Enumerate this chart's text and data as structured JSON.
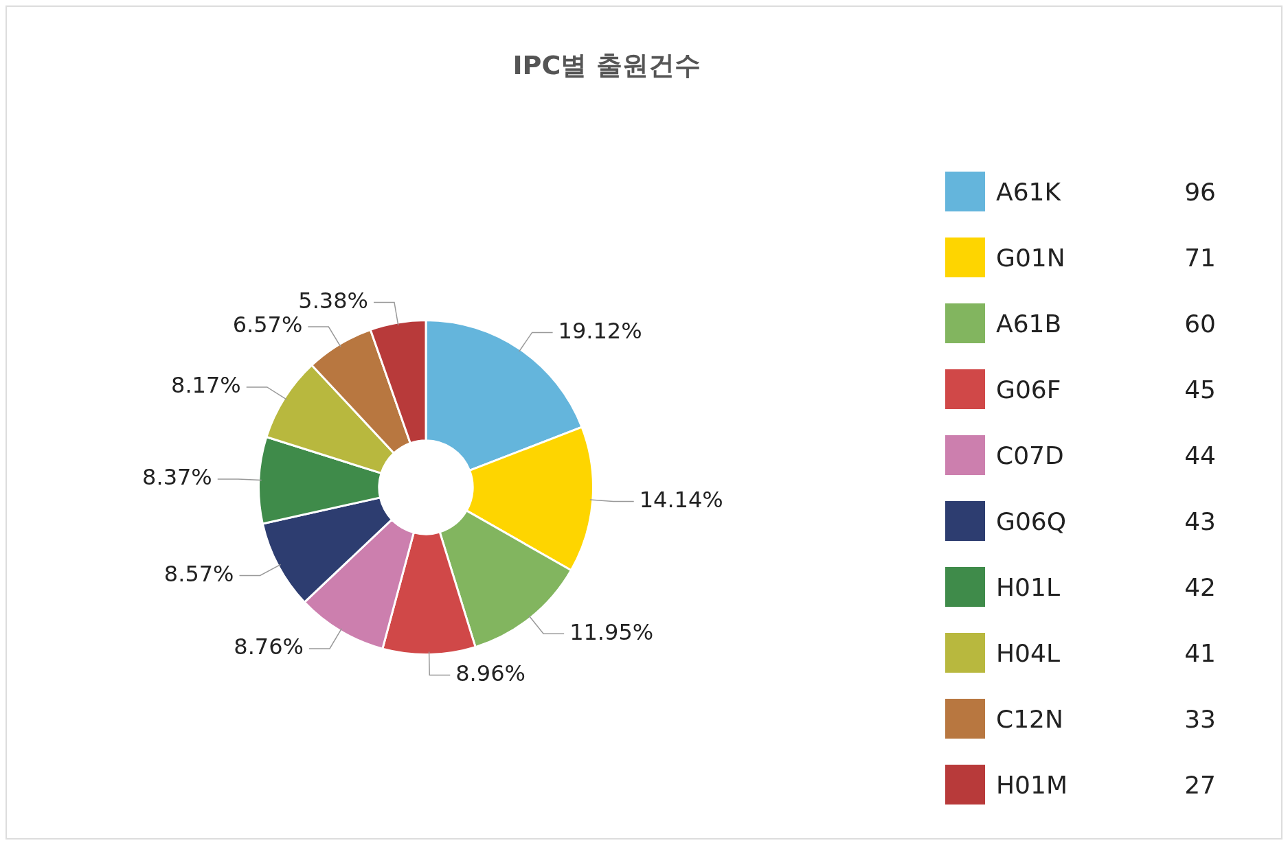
{
  "chart_data": {
    "type": "donut",
    "title": "IPC별 출원건수",
    "categories": [
      "A61K",
      "G01N",
      "A61B",
      "G06F",
      "C07D",
      "G06Q",
      "H01L",
      "H04L",
      "C12N",
      "H01M"
    ],
    "values": [
      19.12,
      14.14,
      11.95,
      8.96,
      8.76,
      8.57,
      8.37,
      8.17,
      6.57,
      5.38
    ],
    "annotations": [
      "96",
      "71",
      "60",
      "45",
      "44",
      "43",
      "42",
      "41",
      "33",
      "27"
    ],
    "colors": [
      "#64b5dc",
      "#fed500",
      "#82b55f",
      "#d04848",
      "#cc7fae",
      "#2d3d70",
      "#3f8b4a",
      "#b8b83e",
      "#b87740",
      "#b83a3a"
    ],
    "value_labels": [
      "19.12%",
      "14.14%",
      "11.95%",
      "8.96%",
      "8.76%",
      "8.57%",
      "8.37%",
      "8.17%",
      "6.57%",
      "5.38%"
    ],
    "data_labels": true,
    "legend": "right"
  }
}
